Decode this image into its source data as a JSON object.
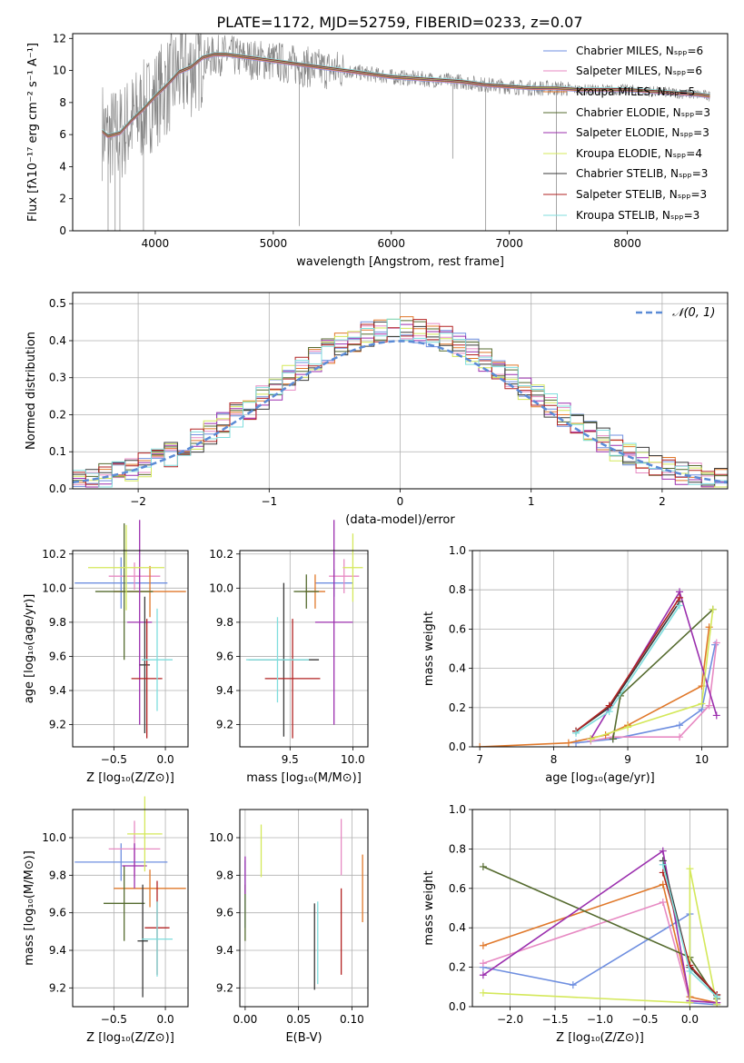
{
  "figure_title": "PLATE=1172, MJD=52759, FIBERID=0233, z=0.07",
  "model_colors": [
    "#6f8fe0",
    "#e78ac3",
    "#e0782a",
    "#556b2f",
    "#9b2fae",
    "#d4e85a",
    "#3a3a3a",
    "#b22222",
    "#7fdede"
  ],
  "legend_labels": [
    "Chabrier MILES, Nₛₚₚ=6",
    "Salpeter MILES, Nₛₚₚ=6",
    "Kroupa MILES, Nₛₚₚ=5",
    "Chabrier ELODIE, Nₛₚₚ=3",
    "Salpeter ELODIE, Nₛₚₚ=3",
    "Kroupa ELODIE, Nₛₚₚ=4",
    "Chabrier STELIB, Nₛₚₚ=3",
    "Salpeter STELIB, Nₛₚₚ=3",
    "Kroupa STELIB, Nₛₚₚ=3"
  ],
  "chart_data": [
    {
      "id": "spectrum",
      "type": "line",
      "xlabel": "wavelength [Angstrom, rest frame]",
      "ylabel": "Flux [fλ10⁻¹⁷ erg cm⁻² s⁻¹ A⁻¹]",
      "xlim": [
        3300,
        8850
      ],
      "ylim": [
        0,
        12.3
      ],
      "xticks": [
        4000,
        5000,
        6000,
        7000,
        8000
      ],
      "yticks": [
        0,
        2,
        4,
        6,
        8,
        10,
        12
      ],
      "grid": false,
      "legend_position": "top-right",
      "data_x": [
        3550,
        3600,
        3700,
        3800,
        3900,
        4000,
        4100,
        4200,
        4300,
        4400,
        4500,
        4600,
        4700,
        4800,
        5000,
        5200,
        5400,
        5600,
        5800,
        6000,
        6200,
        6400,
        6600,
        6800,
        7000,
        7200,
        7400,
        7600,
        7800,
        8000,
        8200,
        8400,
        8600,
        8700
      ],
      "data_y": [
        6.3,
        5.8,
        6.0,
        6.8,
        7.5,
        8.3,
        9.0,
        9.8,
        10.1,
        10.7,
        10.9,
        11.0,
        10.8,
        10.7,
        10.6,
        10.3,
        10.1,
        10.0,
        9.8,
        9.6,
        9.5,
        9.4,
        9.3,
        9.1,
        9.0,
        8.9,
        8.9,
        8.8,
        8.8,
        8.8,
        8.7,
        8.6,
        8.5,
        8.4
      ],
      "model_y": [
        6.2,
        5.9,
        6.1,
        6.9,
        7.6,
        8.4,
        9.1,
        9.9,
        10.2,
        10.8,
        11.0,
        11.0,
        10.9,
        10.8,
        10.6,
        10.4,
        10.2,
        10.0,
        9.8,
        9.6,
        9.5,
        9.4,
        9.3,
        9.1,
        9.0,
        8.9,
        8.9,
        8.8,
        8.8,
        8.8,
        8.7,
        8.6,
        8.5,
        8.4
      ]
    },
    {
      "id": "residuals",
      "type": "line",
      "xlabel": "(data-model)/error",
      "ylabel": "Normed distribution",
      "xlim": [
        -2.5,
        2.5
      ],
      "ylim": [
        0,
        0.53
      ],
      "xticks": [
        -2,
        -1,
        0,
        1,
        2
      ],
      "yticks": [
        0.0,
        0.1,
        0.2,
        0.3,
        0.4,
        0.5
      ],
      "grid": true,
      "legend": "𝒩(0, 1)",
      "legend_position": "top-right"
    },
    {
      "id": "age_vs_Z",
      "type": "scatter",
      "xlabel": "Z [log₁₀(Z/Z⊙)]",
      "ylabel": "age  [log₁₀(age/yr)]",
      "xlim": [
        -0.9,
        0.22
      ],
      "ylim": [
        9.07,
        10.22
      ],
      "xticks": [
        -0.5,
        0.0
      ],
      "yticks": [
        9.2,
        9.4,
        9.6,
        9.8,
        10.0,
        10.2
      ],
      "grid": true,
      "points": [
        {
          "x": -0.43,
          "y": 10.03,
          "xerr": 0.45,
          "yerr": 0.15
        },
        {
          "x": -0.3,
          "y": 10.07,
          "xerr": 0.25,
          "yerr": 0.08
        },
        {
          "x": -0.15,
          "y": 9.98,
          "xerr": 0.35,
          "yerr": 0.15
        },
        {
          "x": -0.4,
          "y": 9.98,
          "xerr": 0.28,
          "yerr": 0.4
        },
        {
          "x": -0.25,
          "y": 9.8,
          "xerr": 0.12,
          "yerr": 0.6
        },
        {
          "x": -0.38,
          "y": 10.12,
          "xerr": 0.37,
          "yerr": 0.25
        },
        {
          "x": -0.2,
          "y": 9.55,
          "xerr": 0.05,
          "yerr": 0.4
        },
        {
          "x": -0.18,
          "y": 9.47,
          "xerr": 0.15,
          "yerr": 0.35
        },
        {
          "x": -0.08,
          "y": 9.58,
          "xerr": 0.15,
          "yerr": 0.3
        }
      ]
    },
    {
      "id": "age_vs_mass",
      "type": "scatter",
      "xlabel": "mass [log₁₀(M/M⊙)]",
      "ylabel": "",
      "xlim": [
        9.1,
        10.12
      ],
      "ylim": [
        9.07,
        10.22
      ],
      "xticks": [
        9.5,
        10.0
      ],
      "yticks": [
        9.2,
        9.4,
        9.6,
        9.8,
        10.0,
        10.2
      ],
      "grid": true,
      "points": [
        {
          "x": 9.85,
          "y": 10.03,
          "xerr": 0.15,
          "yerr": 0.08
        },
        {
          "x": 9.93,
          "y": 10.07,
          "xerr": 0.12,
          "yerr": 0.1
        },
        {
          "x": 9.7,
          "y": 9.98,
          "xerr": 0.08,
          "yerr": 0.1
        },
        {
          "x": 9.63,
          "y": 9.98,
          "xerr": 0.1,
          "yerr": 0.1
        },
        {
          "x": 9.85,
          "y": 9.8,
          "xerr": 0.15,
          "yerr": 0.6
        },
        {
          "x": 10.0,
          "y": 10.12,
          "xerr": 0.08,
          "yerr": 0.2
        },
        {
          "x": 9.45,
          "y": 9.58,
          "xerr": 0.28,
          "yerr": 0.45
        },
        {
          "x": 9.52,
          "y": 9.47,
          "xerr": 0.22,
          "yerr": 0.35
        },
        {
          "x": 9.4,
          "y": 9.58,
          "xerr": 0.25,
          "yerr": 0.25
        }
      ]
    },
    {
      "id": "weight_vs_age",
      "type": "line",
      "xlabel": "age  [log₁₀(age/yr)]",
      "ylabel": "mass weight",
      "xlim": [
        6.9,
        10.35
      ],
      "ylim": [
        0,
        1.0
      ],
      "xticks": [
        7,
        8,
        9,
        10
      ],
      "yticks": [
        0.0,
        0.2,
        0.4,
        0.6,
        0.8,
        1.0
      ],
      "grid": true,
      "series": [
        {
          "x": [
            8.3,
            8.8,
            9.7,
            10.0,
            10.18
          ],
          "y": [
            0.02,
            0.04,
            0.11,
            0.19,
            0.52
          ]
        },
        {
          "x": [
            8.5,
            8.8,
            9.7,
            10.1,
            10.2
          ],
          "y": [
            0.03,
            0.05,
            0.05,
            0.21,
            0.53
          ]
        },
        {
          "x": [
            7.0,
            8.2,
            8.7,
            9.0,
            10.0,
            10.1
          ],
          "y": [
            0.0,
            0.02,
            0.06,
            0.11,
            0.31,
            0.61
          ]
        },
        {
          "x": [
            8.8,
            8.9,
            10.15
          ],
          "y": [
            0.04,
            0.26,
            0.7
          ]
        },
        {
          "x": [
            8.5,
            9.7,
            10.2
          ],
          "y": [
            0.04,
            0.79,
            0.16
          ]
        },
        {
          "x": [
            8.5,
            9.0,
            10.0,
            10.15
          ],
          "y": [
            0.04,
            0.1,
            0.22,
            0.7
          ]
        },
        {
          "x": [
            8.3,
            8.75,
            9.7
          ],
          "y": [
            0.08,
            0.2,
            0.74
          ]
        },
        {
          "x": [
            8.3,
            8.75,
            9.7
          ],
          "y": [
            0.08,
            0.21,
            0.76
          ]
        },
        {
          "x": [
            8.3,
            8.75,
            9.7
          ],
          "y": [
            0.07,
            0.18,
            0.72
          ]
        }
      ]
    },
    {
      "id": "mass_vs_Z",
      "type": "scatter",
      "xlabel": "Z [log₁₀(Z/Z⊙)]",
      "ylabel": "mass [log₁₀(M/M⊙)]",
      "xlim": [
        -0.9,
        0.22
      ],
      "ylim": [
        9.1,
        10.15
      ],
      "xticks": [
        -0.5,
        0.0
      ],
      "yticks": [
        9.2,
        9.4,
        9.6,
        9.8,
        10.0
      ],
      "grid": true,
      "points": [
        {
          "x": -0.43,
          "y": 9.87,
          "xerr": 0.45,
          "yerr": 0.1
        },
        {
          "x": -0.3,
          "y": 9.94,
          "xerr": 0.25,
          "yerr": 0.15
        },
        {
          "x": -0.15,
          "y": 9.73,
          "xerr": 0.35,
          "yerr": 0.1
        },
        {
          "x": -0.4,
          "y": 9.65,
          "xerr": 0.2,
          "yerr": 0.2
        },
        {
          "x": -0.3,
          "y": 9.85,
          "xerr": 0.12,
          "yerr": 0.12
        },
        {
          "x": -0.2,
          "y": 10.02,
          "xerr": 0.17,
          "yerr": 0.2
        },
        {
          "x": -0.22,
          "y": 9.45,
          "xerr": 0.05,
          "yerr": 0.3
        },
        {
          "x": -0.08,
          "y": 9.52,
          "xerr": 0.12,
          "yerr": 0.25
        },
        {
          "x": -0.08,
          "y": 9.46,
          "xerr": 0.15,
          "yerr": 0.2
        }
      ]
    },
    {
      "id": "mass_vs_EBV",
      "type": "scatter",
      "xlabel": "E(B-V)",
      "ylabel": "",
      "xlim": [
        -0.005,
        0.115
      ],
      "ylim": [
        9.1,
        10.15
      ],
      "xticks": [
        0.0,
        0.05,
        0.1
      ],
      "yticks": [
        9.2,
        9.4,
        9.6,
        9.8,
        10.0
      ],
      "grid": true,
      "points": [
        {
          "x": 0.0,
          "y": 9.7,
          "yerr": 0.18
        },
        {
          "x": 0.09,
          "y": 9.95,
          "yerr": 0.15
        },
        {
          "x": 0.11,
          "y": 9.73,
          "yerr": 0.18
        },
        {
          "x": 0.0,
          "y": 9.6,
          "yerr": 0.15
        },
        {
          "x": 0.0,
          "y": 9.8,
          "yerr": 0.1
        },
        {
          "x": 0.015,
          "y": 9.93,
          "yerr": 0.14
        },
        {
          "x": 0.065,
          "y": 9.42,
          "yerr": 0.23
        },
        {
          "x": 0.09,
          "y": 9.5,
          "yerr": 0.23
        },
        {
          "x": 0.068,
          "y": 9.44,
          "yerr": 0.22
        }
      ]
    },
    {
      "id": "weight_vs_Z",
      "type": "line",
      "xlabel": "Z [log₁₀(Z/Z⊙)]",
      "ylabel": "mass weight",
      "xlim": [
        -2.42,
        0.42
      ],
      "ylim": [
        0,
        1.0
      ],
      "xticks": [
        -2.0,
        -1.5,
        -1.0,
        -0.5,
        0.0
      ],
      "yticks": [
        0.0,
        0.2,
        0.4,
        0.6,
        0.8,
        1.0
      ],
      "grid": true,
      "series": [
        {
          "x": [
            -2.3,
            -1.3,
            0.0,
            0.0,
            0.3
          ],
          "y": [
            0.2,
            0.11,
            0.47,
            0.02,
            0.01
          ]
        },
        {
          "x": [
            -2.3,
            -0.3,
            0.0,
            0.3
          ],
          "y": [
            0.22,
            0.53,
            0.03,
            0.02
          ]
        },
        {
          "x": [
            -2.3,
            -0.3,
            0.0,
            0.3
          ],
          "y": [
            0.31,
            0.62,
            0.05,
            0.02
          ]
        },
        {
          "x": [
            -2.3,
            0.0,
            0.3
          ],
          "y": [
            0.71,
            0.25,
            0.04
          ]
        },
        {
          "x": [
            -2.3,
            -0.3,
            0.0,
            0.3
          ],
          "y": [
            0.16,
            0.79,
            0.03,
            0.02
          ]
        },
        {
          "x": [
            -2.3,
            0.0,
            0.0,
            0.3
          ],
          "y": [
            0.07,
            0.02,
            0.7,
            0.01
          ]
        },
        {
          "x": [
            -0.3,
            0.0,
            0.3
          ],
          "y": [
            0.74,
            0.2,
            0.06
          ]
        },
        {
          "x": [
            -0.3,
            0.0,
            0.3
          ],
          "y": [
            0.68,
            0.21,
            0.06
          ]
        },
        {
          "x": [
            -0.3,
            0.0,
            0.3
          ],
          "y": [
            0.72,
            0.18,
            0.05
          ]
        }
      ]
    }
  ]
}
